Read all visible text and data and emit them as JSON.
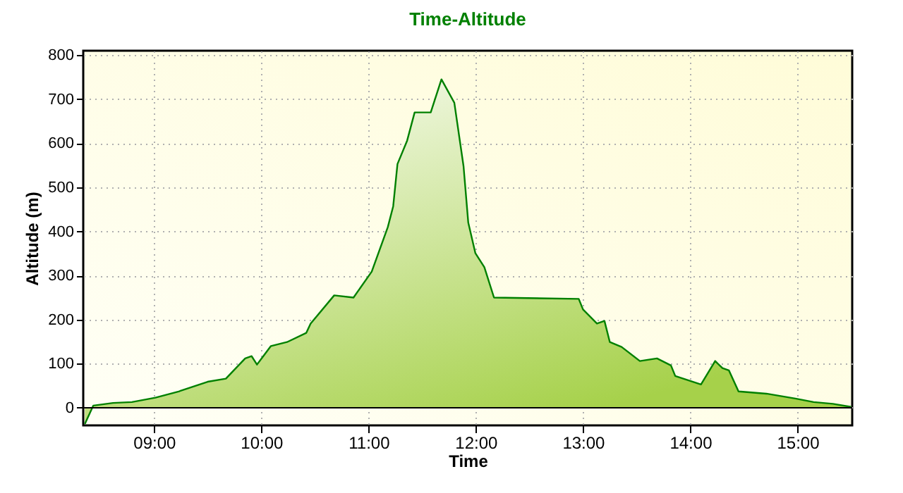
{
  "chart_data": {
    "type": "area",
    "title": "Time-Altitude",
    "xlabel": "Time",
    "ylabel": "Altitude (m)",
    "x": [
      8.355,
      8.434,
      8.618,
      8.794,
      9.013,
      9.23,
      9.5,
      9.67,
      9.85,
      9.91,
      9.96,
      10.09,
      10.24,
      10.42,
      10.46,
      10.68,
      10.86,
      11.03,
      11.18,
      11.23,
      11.27,
      11.36,
      11.43,
      11.58,
      11.68,
      11.8,
      11.886,
      11.93,
      11.996,
      12.08,
      12.17,
      12.96,
      13.0,
      13.13,
      13.2,
      13.25,
      13.36,
      13.53,
      13.69,
      13.82,
      13.86,
      14.1,
      14.232,
      14.3,
      14.36,
      14.45,
      14.71,
      14.98,
      15.15,
      15.33,
      15.5
    ],
    "series": [
      {
        "color": "#008000",
        "values": [
          -37,
          5,
          11,
          13,
          23,
          37,
          59,
          66,
          112,
          117,
          98,
          140,
          149,
          170,
          191,
          255,
          250,
          309,
          410,
          457,
          553,
          606,
          670,
          670,
          745,
          692,
          548,
          420,
          351,
          319,
          250,
          247,
          223,
          191,
          197,
          149,
          138,
          106,
          112,
          96,
          72,
          53,
          106,
          90,
          85,
          37,
          32,
          21,
          13,
          9,
          2
        ]
      }
    ],
    "xlim": [
      8.34,
      15.51
    ],
    "xticks": [
      {
        "value": 9,
        "label": "09:00"
      },
      {
        "value": 10,
        "label": "10:00"
      },
      {
        "value": 11,
        "label": "11:00"
      },
      {
        "value": 12,
        "label": "12:00"
      },
      {
        "value": 13,
        "label": "13:00"
      },
      {
        "value": 14,
        "label": "14:00"
      },
      {
        "value": 15,
        "label": "15:00"
      }
    ],
    "ylim": [
      -40,
      810
    ],
    "yticks": [
      0,
      100,
      200,
      300,
      400,
      500,
      600,
      700,
      800
    ],
    "grid": true
  }
}
